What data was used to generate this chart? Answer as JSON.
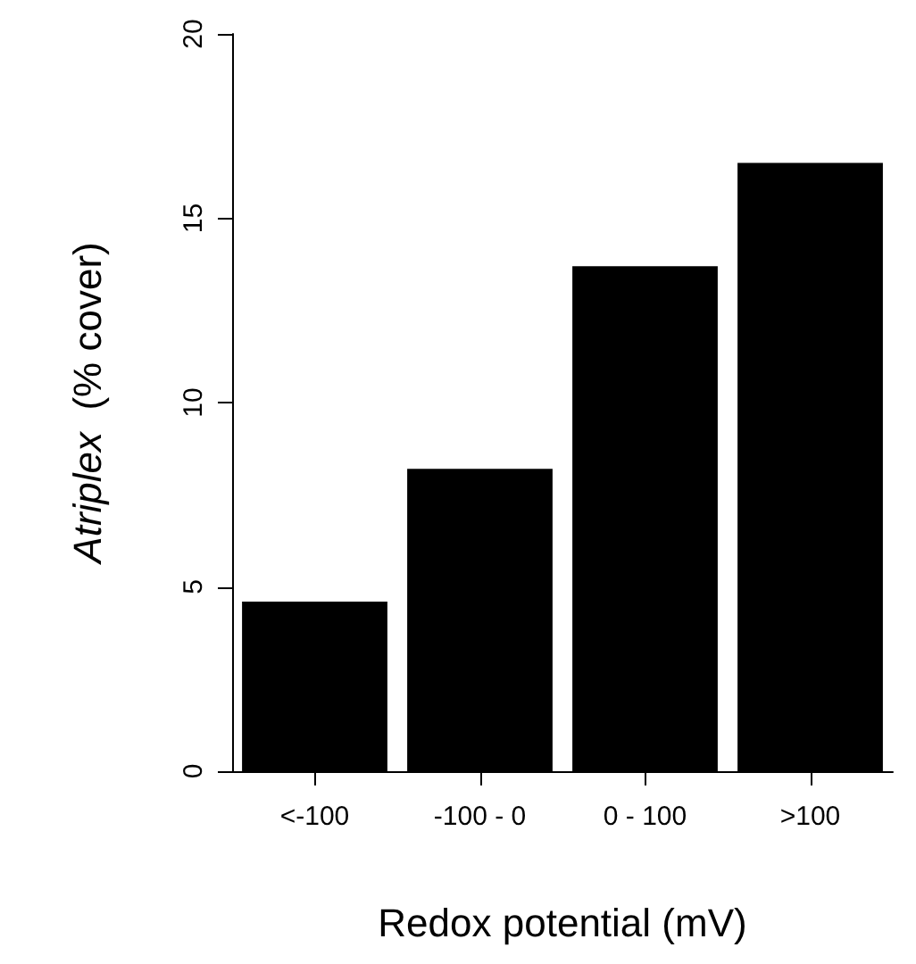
{
  "chart_data": {
    "type": "bar",
    "xlabel": "Redox potential (mV)",
    "ylabel": "Atriplex  (% cover)",
    "categories": [
      "<-100",
      "-100 - 0",
      "0 - 100",
      ">100"
    ],
    "values": [
      4.6,
      8.2,
      13.7,
      16.5
    ],
    "color": "#000000",
    "ylim": [
      0,
      20
    ],
    "yticks": [
      0,
      5,
      10,
      15,
      20
    ],
    "grid": false
  }
}
